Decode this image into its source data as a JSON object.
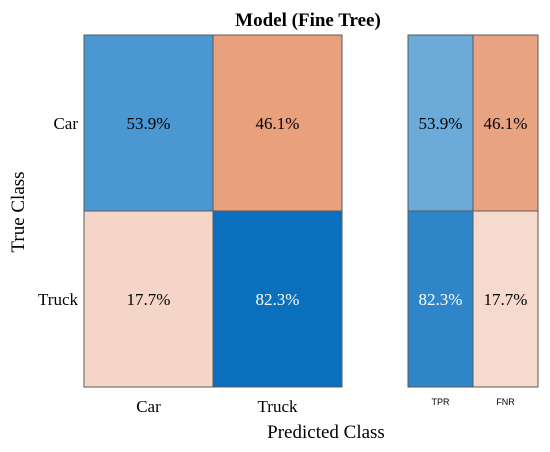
{
  "chart_data": {
    "type": "heatmap",
    "title": "Model (Fine Tree)",
    "xlabel": "Predicted Class",
    "ylabel": "True Class",
    "row_labels": [
      "Car",
      "Truck"
    ],
    "col_labels": [
      "Car",
      "Truck"
    ],
    "values": [
      [
        53.9,
        46.1
      ],
      [
        17.7,
        82.3
      ]
    ],
    "value_suffix": "%",
    "cell_colors": [
      [
        "#4a97d2",
        "#e8a07d"
      ],
      [
        "#f4d5c7",
        "#0a6fbd"
      ]
    ],
    "cell_text_colors": [
      [
        "#000000",
        "#000000"
      ],
      [
        "#000000",
        "#ffffff"
      ]
    ],
    "summary": {
      "col_labels": [
        "TPR",
        "FNR"
      ],
      "values": [
        [
          53.9,
          46.1
        ],
        [
          82.3,
          17.7
        ]
      ],
      "cell_colors": [
        [
          "#6caad9",
          "#e8a382"
        ],
        [
          "#2e86c8",
          "#f6dacd"
        ]
      ],
      "cell_text_colors": [
        [
          "#000000",
          "#000000"
        ],
        [
          "#ffffff",
          "#000000"
        ]
      ]
    }
  }
}
